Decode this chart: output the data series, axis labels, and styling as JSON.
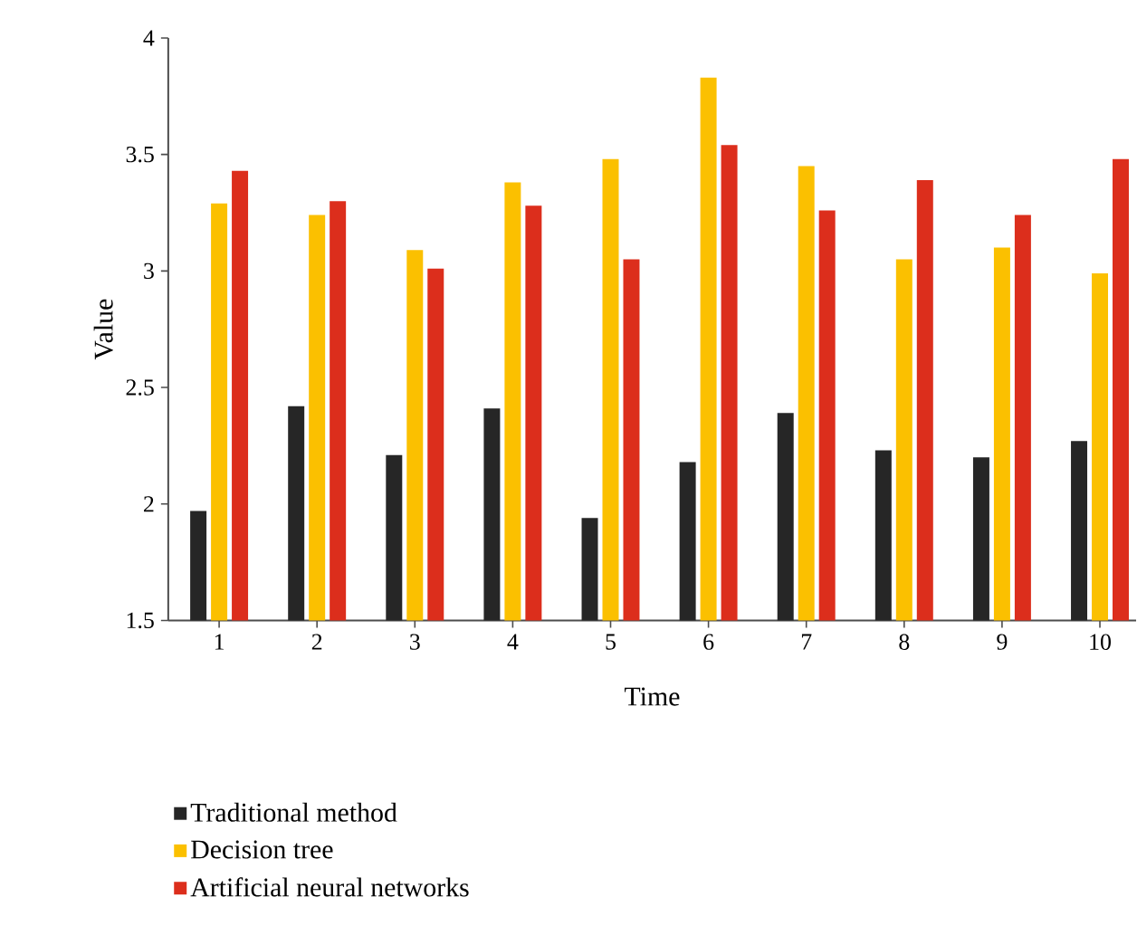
{
  "chart_data": {
    "type": "bar",
    "xlabel": "Time",
    "ylabel": "Value",
    "categories": [
      "1",
      "2",
      "3",
      "4",
      "5",
      "6",
      "7",
      "8",
      "9",
      "10"
    ],
    "series": [
      {
        "name": "Traditional method",
        "color": "#262626",
        "values": [
          1.97,
          2.42,
          2.21,
          2.41,
          1.94,
          2.18,
          2.39,
          2.23,
          2.2,
          2.27
        ]
      },
      {
        "name": "Decision tree",
        "color": "#fbc000",
        "values": [
          3.29,
          3.24,
          3.09,
          3.38,
          3.48,
          3.83,
          3.45,
          3.05,
          3.1,
          2.99
        ]
      },
      {
        "name": "Artificial neural networks",
        "color": "#dc2e1c",
        "values": [
          3.43,
          3.3,
          3.01,
          3.28,
          3.05,
          3.54,
          3.26,
          3.39,
          3.24,
          3.48
        ]
      }
    ],
    "ylim": [
      1.5,
      4
    ],
    "yticks": [
      1.5,
      2,
      2.5,
      3,
      3.5,
      4
    ],
    "legend": "bottom left"
  }
}
